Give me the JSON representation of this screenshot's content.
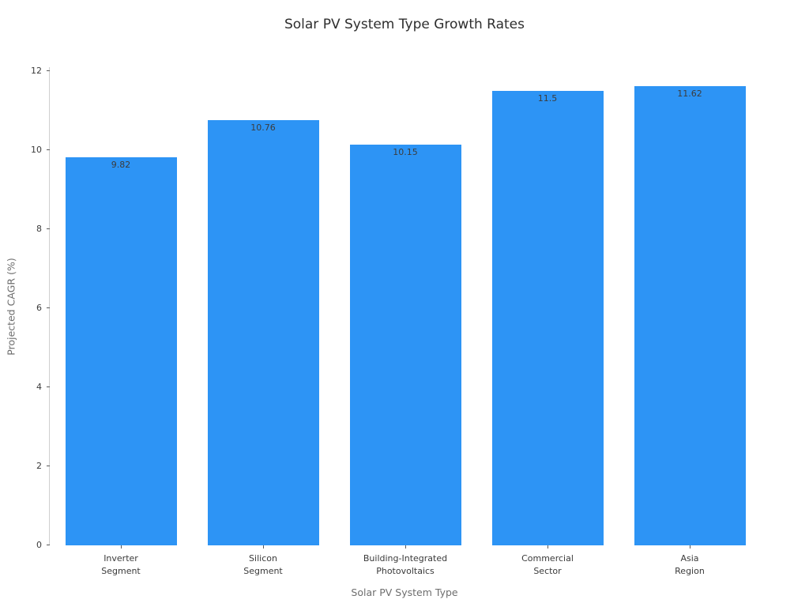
{
  "chart_data": {
    "type": "bar",
    "title": "Solar PV System Type Growth Rates",
    "xlabel": "Solar PV System Type",
    "ylabel": "Projected CAGR (%)",
    "categories": [
      [
        "Inverter",
        "Segment"
      ],
      [
        "Silicon",
        "Segment"
      ],
      [
        "Building-Integrated",
        "Photovoltaics"
      ],
      [
        "Commercial",
        "Sector"
      ],
      [
        "Asia",
        "Region"
      ]
    ],
    "values": [
      9.82,
      10.76,
      10.15,
      11.5,
      11.62
    ],
    "value_labels": [
      "9.82",
      "10.76",
      "10.15",
      "11.5",
      "11.62"
    ],
    "yticks": [
      0,
      2,
      4,
      6,
      8,
      10,
      12
    ],
    "ylim": [
      0,
      12.1
    ],
    "bar_color": "#2d94f5",
    "grid": false,
    "legend": null,
    "spine_color": "#cfcfcf"
  }
}
